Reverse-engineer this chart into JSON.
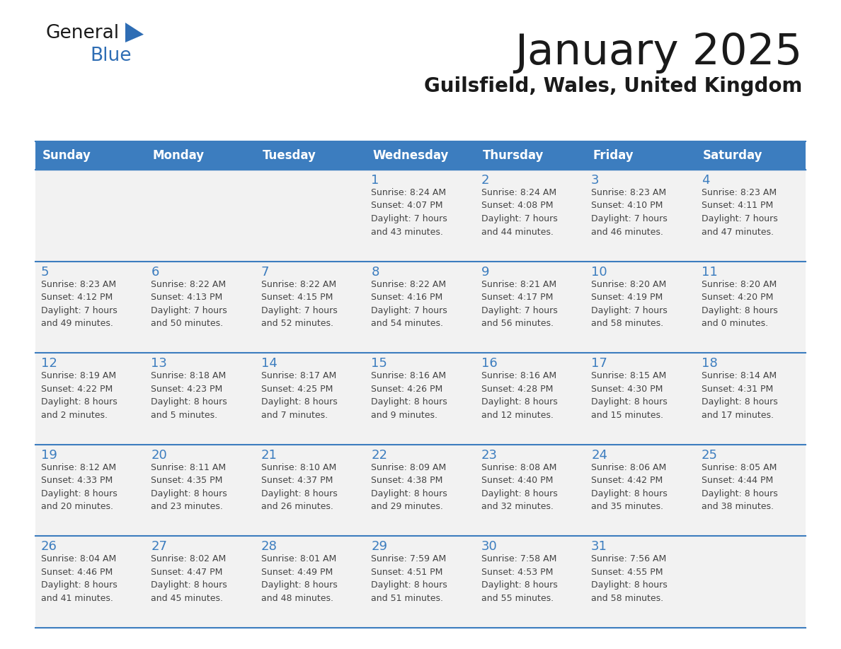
{
  "title": "January 2025",
  "subtitle": "Guilsfield, Wales, United Kingdom",
  "header_bg_color": "#3c7dbf",
  "header_text_color": "#ffffff",
  "cell_bg_color": "#f2f2f2",
  "day_number_color": "#3c7dbf",
  "cell_text_color": "#444444",
  "border_color": "#3c7dbf",
  "line_color": "#3c7dbf",
  "days_of_week": [
    "Sunday",
    "Monday",
    "Tuesday",
    "Wednesday",
    "Thursday",
    "Friday",
    "Saturday"
  ],
  "logo_general_color": "#1a1a1a",
  "logo_blue_color": "#2e6db4",
  "logo_triangle_color": "#2e6db4",
  "weeks": [
    [
      {
        "day": "",
        "info": ""
      },
      {
        "day": "",
        "info": ""
      },
      {
        "day": "",
        "info": ""
      },
      {
        "day": "1",
        "info": "Sunrise: 8:24 AM\nSunset: 4:07 PM\nDaylight: 7 hours\nand 43 minutes."
      },
      {
        "day": "2",
        "info": "Sunrise: 8:24 AM\nSunset: 4:08 PM\nDaylight: 7 hours\nand 44 minutes."
      },
      {
        "day": "3",
        "info": "Sunrise: 8:23 AM\nSunset: 4:10 PM\nDaylight: 7 hours\nand 46 minutes."
      },
      {
        "day": "4",
        "info": "Sunrise: 8:23 AM\nSunset: 4:11 PM\nDaylight: 7 hours\nand 47 minutes."
      }
    ],
    [
      {
        "day": "5",
        "info": "Sunrise: 8:23 AM\nSunset: 4:12 PM\nDaylight: 7 hours\nand 49 minutes."
      },
      {
        "day": "6",
        "info": "Sunrise: 8:22 AM\nSunset: 4:13 PM\nDaylight: 7 hours\nand 50 minutes."
      },
      {
        "day": "7",
        "info": "Sunrise: 8:22 AM\nSunset: 4:15 PM\nDaylight: 7 hours\nand 52 minutes."
      },
      {
        "day": "8",
        "info": "Sunrise: 8:22 AM\nSunset: 4:16 PM\nDaylight: 7 hours\nand 54 minutes."
      },
      {
        "day": "9",
        "info": "Sunrise: 8:21 AM\nSunset: 4:17 PM\nDaylight: 7 hours\nand 56 minutes."
      },
      {
        "day": "10",
        "info": "Sunrise: 8:20 AM\nSunset: 4:19 PM\nDaylight: 7 hours\nand 58 minutes."
      },
      {
        "day": "11",
        "info": "Sunrise: 8:20 AM\nSunset: 4:20 PM\nDaylight: 8 hours\nand 0 minutes."
      }
    ],
    [
      {
        "day": "12",
        "info": "Sunrise: 8:19 AM\nSunset: 4:22 PM\nDaylight: 8 hours\nand 2 minutes."
      },
      {
        "day": "13",
        "info": "Sunrise: 8:18 AM\nSunset: 4:23 PM\nDaylight: 8 hours\nand 5 minutes."
      },
      {
        "day": "14",
        "info": "Sunrise: 8:17 AM\nSunset: 4:25 PM\nDaylight: 8 hours\nand 7 minutes."
      },
      {
        "day": "15",
        "info": "Sunrise: 8:16 AM\nSunset: 4:26 PM\nDaylight: 8 hours\nand 9 minutes."
      },
      {
        "day": "16",
        "info": "Sunrise: 8:16 AM\nSunset: 4:28 PM\nDaylight: 8 hours\nand 12 minutes."
      },
      {
        "day": "17",
        "info": "Sunrise: 8:15 AM\nSunset: 4:30 PM\nDaylight: 8 hours\nand 15 minutes."
      },
      {
        "day": "18",
        "info": "Sunrise: 8:14 AM\nSunset: 4:31 PM\nDaylight: 8 hours\nand 17 minutes."
      }
    ],
    [
      {
        "day": "19",
        "info": "Sunrise: 8:12 AM\nSunset: 4:33 PM\nDaylight: 8 hours\nand 20 minutes."
      },
      {
        "day": "20",
        "info": "Sunrise: 8:11 AM\nSunset: 4:35 PM\nDaylight: 8 hours\nand 23 minutes."
      },
      {
        "day": "21",
        "info": "Sunrise: 8:10 AM\nSunset: 4:37 PM\nDaylight: 8 hours\nand 26 minutes."
      },
      {
        "day": "22",
        "info": "Sunrise: 8:09 AM\nSunset: 4:38 PM\nDaylight: 8 hours\nand 29 minutes."
      },
      {
        "day": "23",
        "info": "Sunrise: 8:08 AM\nSunset: 4:40 PM\nDaylight: 8 hours\nand 32 minutes."
      },
      {
        "day": "24",
        "info": "Sunrise: 8:06 AM\nSunset: 4:42 PM\nDaylight: 8 hours\nand 35 minutes."
      },
      {
        "day": "25",
        "info": "Sunrise: 8:05 AM\nSunset: 4:44 PM\nDaylight: 8 hours\nand 38 minutes."
      }
    ],
    [
      {
        "day": "26",
        "info": "Sunrise: 8:04 AM\nSunset: 4:46 PM\nDaylight: 8 hours\nand 41 minutes."
      },
      {
        "day": "27",
        "info": "Sunrise: 8:02 AM\nSunset: 4:47 PM\nDaylight: 8 hours\nand 45 minutes."
      },
      {
        "day": "28",
        "info": "Sunrise: 8:01 AM\nSunset: 4:49 PM\nDaylight: 8 hours\nand 48 minutes."
      },
      {
        "day": "29",
        "info": "Sunrise: 7:59 AM\nSunset: 4:51 PM\nDaylight: 8 hours\nand 51 minutes."
      },
      {
        "day": "30",
        "info": "Sunrise: 7:58 AM\nSunset: 4:53 PM\nDaylight: 8 hours\nand 55 minutes."
      },
      {
        "day": "31",
        "info": "Sunrise: 7:56 AM\nSunset: 4:55 PM\nDaylight: 8 hours\nand 58 minutes."
      },
      {
        "day": "",
        "info": ""
      }
    ]
  ]
}
